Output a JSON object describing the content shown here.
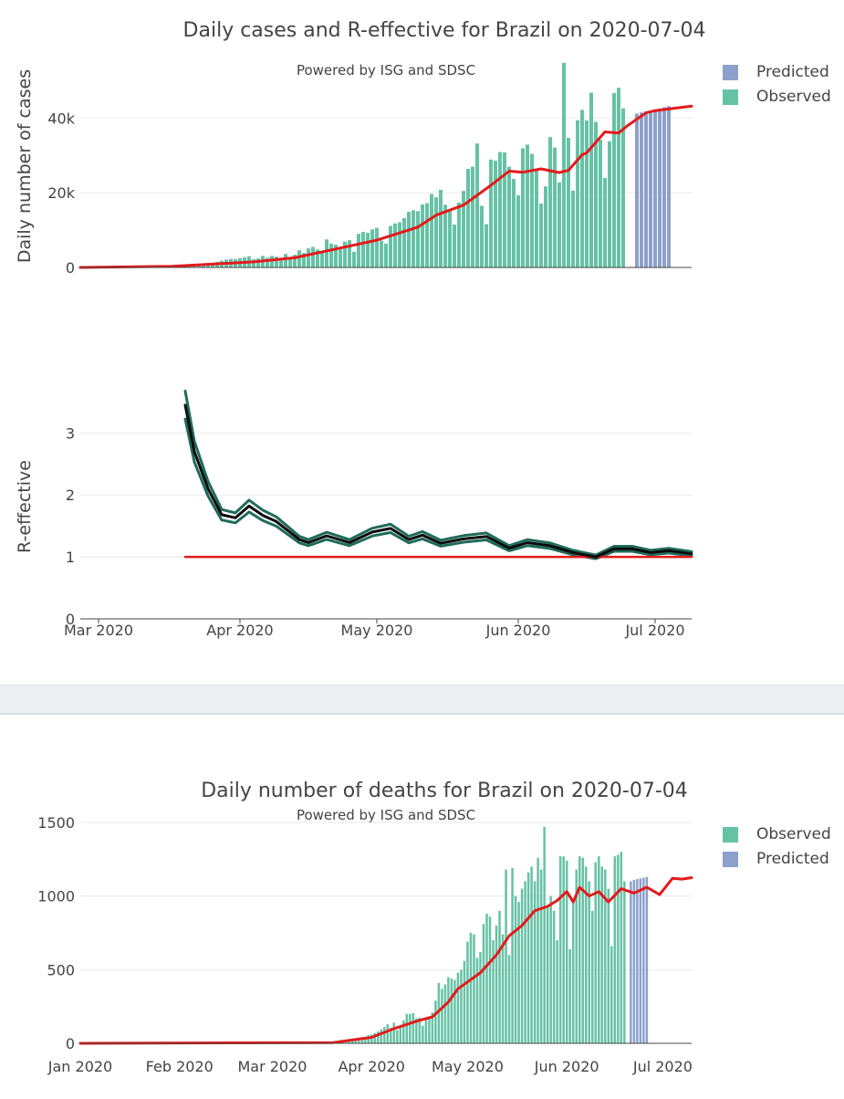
{
  "colors": {
    "observed": "#66c2a5",
    "predicted": "#8da0cb",
    "trend": "#e41a1c",
    "reff": "#0b0b0b",
    "reff_band": "#1f6b5a",
    "grid": "#ebebeb",
    "text": "#444444"
  },
  "chart_data": [
    {
      "type": "bar",
      "title": "Daily cases and R-effective for Brazil on 2020-07-04",
      "subtitle": "Powered by ISG and SDSC",
      "xlabel": "",
      "ylabel": "Daily number of cases",
      "xlim": [
        "2020-02-26",
        "2020-07-09"
      ],
      "ylim": [
        0,
        55000
      ],
      "y_ticks": [
        0,
        20000,
        40000
      ],
      "y_tick_labels": [
        "0",
        "20k",
        "40k"
      ],
      "grid": true,
      "legend_position": "top-right",
      "legend": [
        "Predicted",
        "Observed"
      ],
      "observed": {
        "name": "Observed",
        "start": "2020-03-01",
        "values": [
          0,
          0,
          0,
          0,
          2,
          3,
          5,
          7,
          9,
          12,
          15,
          20,
          30,
          40,
          50,
          70,
          100,
          150,
          230,
          320,
          400,
          520,
          620,
          800,
          940,
          1200,
          1500,
          1800,
          2100,
          2300,
          2200,
          2500,
          2700,
          3000,
          2200,
          2400,
          3100,
          2600,
          3100,
          2900,
          2500,
          3600,
          2800,
          3400,
          4600,
          3900,
          5100,
          5500,
          4800,
          4200,
          7500,
          6400,
          6100,
          5200,
          6900,
          7300,
          4200,
          9000,
          9500,
          9300,
          10200,
          10600,
          7200,
          6400,
          11100,
          11800,
          12100,
          13200,
          14900,
          15300,
          15100,
          16900,
          17200,
          19700,
          18800,
          20800,
          16800,
          15200,
          11500,
          17400,
          20500,
          26400,
          27000,
          33200,
          16500,
          11600,
          28900,
          28600,
          30900,
          30800,
          27000,
          23700,
          19300,
          31900,
          32900,
          30400,
          26100,
          17100,
          21700,
          34900,
          32100,
          22800,
          54800,
          34700,
          20600,
          39400,
          42200,
          39400,
          46800,
          39000,
          34200,
          24000,
          33800,
          46700,
          48100,
          42600
        ],
        "values_note": "daily reported confirmed cases, 2020-03-01 to 2020-06-26"
      },
      "predicted": {
        "name": "Predicted",
        "start": "2020-06-27",
        "values": [
          41200,
          41500,
          41800,
          42000,
          42300,
          42600,
          42900,
          43200
        ]
      },
      "trend": {
        "start": "2020-02-26",
        "end": "2020-07-04",
        "points": [
          [
            "2020-02-26",
            0
          ],
          [
            "2020-03-20",
            300
          ],
          [
            "2020-04-10",
            1500
          ],
          [
            "2020-04-20",
            2600
          ],
          [
            "2020-05-01",
            5200
          ],
          [
            "2020-05-10",
            7300
          ],
          [
            "2020-05-20",
            10800
          ],
          [
            "2020-05-25",
            14000
          ],
          [
            "2020-06-01",
            16700
          ],
          [
            "2020-06-08",
            22000
          ],
          [
            "2020-06-12",
            25800
          ],
          [
            "2020-06-16",
            25500
          ],
          [
            "2020-06-20",
            26400
          ],
          [
            "2020-06-25",
            25400
          ],
          [
            "2020-06-27",
            26000
          ],
          [
            "2020-06-30",
            30200
          ],
          [
            "2020-07-02",
            30700
          ],
          [
            "2020-07-06",
            36300
          ],
          [
            "2020-07-09",
            36000
          ],
          [
            "2020-07-12",
            38000
          ],
          [
            "2020-07-16",
            41400
          ],
          [
            "2020-07-19",
            42000
          ],
          [
            "2020-07-23",
            42600
          ],
          [
            "2020-07-27",
            43200
          ]
        ]
      }
    },
    {
      "type": "line",
      "title": "",
      "xlabel": "",
      "ylabel": "R-effective",
      "xlim": [
        "2020-02-26",
        "2020-07-09"
      ],
      "ylim": [
        0,
        3.8
      ],
      "y_ticks": [
        0,
        1,
        2,
        3
      ],
      "x_tick_labels": [
        "Mar 2020",
        "Apr 2020",
        "May 2020",
        "Jun 2020",
        "Jul 2020"
      ],
      "grid": true,
      "series": [
        {
          "points": [
            [
              "2020-03-20",
              3.45
            ],
            [
              "2020-03-22",
              2.7
            ],
            [
              "2020-03-25",
              2.1
            ],
            [
              "2020-03-28",
              1.68
            ],
            [
              "2020-03-31",
              1.63
            ],
            [
              "2020-04-03",
              1.82
            ],
            [
              "2020-04-06",
              1.67
            ],
            [
              "2020-04-09",
              1.57
            ],
            [
              "2020-04-14",
              1.28
            ],
            [
              "2020-04-16",
              1.23
            ],
            [
              "2020-04-20",
              1.34
            ],
            [
              "2020-04-25",
              1.23
            ],
            [
              "2020-04-30",
              1.4
            ],
            [
              "2020-05-04",
              1.46
            ],
            [
              "2020-05-08",
              1.28
            ],
            [
              "2020-05-11",
              1.35
            ],
            [
              "2020-05-15",
              1.22
            ],
            [
              "2020-05-20",
              1.29
            ],
            [
              "2020-05-25",
              1.33
            ],
            [
              "2020-05-30",
              1.14
            ],
            [
              "2020-06-03",
              1.23
            ],
            [
              "2020-06-08",
              1.18
            ],
            [
              "2020-06-13",
              1.07
            ],
            [
              "2020-06-18",
              1.0
            ],
            [
              "2020-06-22",
              1.13
            ],
            [
              "2020-06-26",
              1.13
            ],
            [
              "2020-06-30",
              1.07
            ],
            [
              "2020-07-04",
              1.1
            ],
            [
              "2020-07-09",
              1.05
            ]
          ]
        },
        {
          "name": "threshold",
          "points": [
            [
              "2020-03-20",
              1.0
            ],
            [
              "2020-07-09",
              1.0
            ]
          ]
        }
      ]
    },
    {
      "type": "bar",
      "title": "Daily number of deaths for Brazil on 2020-07-04",
      "subtitle": "Powered by ISG and SDSC",
      "xlabel": "",
      "ylabel": "",
      "xlim": [
        "2020-01-01",
        "2020-07-10"
      ],
      "ylim": [
        0,
        1500
      ],
      "y_ticks": [
        0,
        500,
        1000,
        1500
      ],
      "x_tick_labels": [
        "Jan 2020",
        "Feb 2020",
        "Mar 2020",
        "Apr 2020",
        "May 2020",
        "Jun 2020",
        "Jul 2020"
      ],
      "grid": true,
      "legend_position": "top-right",
      "legend": [
        "Observed",
        "Predicted"
      ],
      "observed": {
        "name": "Observed",
        "start": "2020-03-17",
        "values": [
          1,
          2,
          3,
          4,
          6,
          9,
          12,
          18,
          22,
          25,
          30,
          35,
          42,
          45,
          55,
          60,
          70,
          80,
          95,
          110,
          130,
          105,
          140,
          90,
          110,
          155,
          200,
          200,
          205,
          170,
          175,
          120,
          165,
          175,
          210,
          290,
          410,
          370,
          400,
          450,
          440,
          430,
          480,
          500,
          560,
          690,
          750,
          740,
          580,
          620,
          810,
          880,
          860,
          700,
          800,
          900,
          740,
          1180,
          600,
          1190,
          1000,
          960,
          1050,
          1100,
          1160,
          1200,
          1100,
          1260,
          1180,
          1470,
          920,
          1000,
          900,
          700,
          1270,
          1270,
          1240,
          640,
          980,
          1180,
          1270,
          1260,
          1200,
          1100,
          900,
          1230,
          1270,
          1200,
          1180,
          1050,
          660,
          1270,
          1280,
          1300,
          1100
        ],
        "values_note": "daily reported deaths"
      },
      "predicted": {
        "name": "Predicted",
        "start": "2020-06-21",
        "values": [
          1100,
          1110,
          1115,
          1120,
          1125,
          1130
        ]
      },
      "trend": {
        "points": [
          [
            "2020-01-01",
            0
          ],
          [
            "2020-03-20",
            5
          ],
          [
            "2020-04-01",
            40
          ],
          [
            "2020-04-08",
            100
          ],
          [
            "2020-04-15",
            150
          ],
          [
            "2020-04-20",
            180
          ],
          [
            "2020-04-25",
            280
          ],
          [
            "2020-04-28",
            370
          ],
          [
            "2020-05-05",
            480
          ],
          [
            "2020-05-10",
            600
          ],
          [
            "2020-05-14",
            730
          ],
          [
            "2020-05-18",
            800
          ],
          [
            "2020-05-22",
            900
          ],
          [
            "2020-05-26",
            930
          ],
          [
            "2020-05-29",
            970
          ],
          [
            "2020-06-01",
            1030
          ],
          [
            "2020-06-03",
            960
          ],
          [
            "2020-06-05",
            1060
          ],
          [
            "2020-06-08",
            1000
          ],
          [
            "2020-06-11",
            1030
          ],
          [
            "2020-06-14",
            960
          ],
          [
            "2020-06-18",
            1050
          ],
          [
            "2020-06-22",
            1020
          ],
          [
            "2020-06-26",
            1060
          ],
          [
            "2020-06-30",
            1010
          ],
          [
            "2020-07-04",
            1120
          ],
          [
            "2020-07-07",
            1115
          ],
          [
            "2020-07-10",
            1125
          ]
        ]
      }
    }
  ]
}
